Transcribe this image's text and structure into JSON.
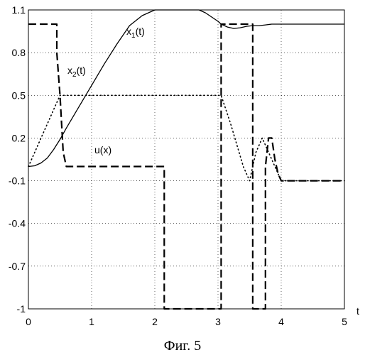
{
  "caption": "Фиг. 5",
  "chart_data": {
    "type": "line",
    "title": "",
    "xlabel": "t",
    "ylabel": "",
    "xlim": [
      0,
      5
    ],
    "ylim": [
      -1,
      1.1
    ],
    "xticks": [
      0,
      1,
      2,
      3,
      4,
      5
    ],
    "yticks": [
      1.1,
      0.8,
      0.5,
      0.2,
      -0.1,
      -0.4,
      -0.7,
      -1
    ],
    "grid": true,
    "legend": "inline-labels",
    "series": [
      {
        "name": "x1(t)",
        "label_main": "x",
        "label_sub": "1",
        "label_rest": "(t)",
        "style": "solid",
        "x": [
          0,
          0.1,
          0.2,
          0.3,
          0.4,
          0.5,
          0.6,
          0.8,
          1.0,
          1.2,
          1.4,
          1.6,
          1.8,
          2.0,
          2.2,
          2.4,
          2.55,
          2.7,
          2.8,
          2.9,
          3.0,
          3.05,
          3.15,
          3.25,
          3.35,
          3.45,
          3.55,
          3.65,
          3.75,
          3.85,
          4.0,
          4.5,
          5.0
        ],
        "y": [
          0,
          0.005,
          0.025,
          0.06,
          0.12,
          0.19,
          0.27,
          0.42,
          0.57,
          0.72,
          0.86,
          0.99,
          1.06,
          1.1,
          1.1,
          1.1,
          1.1,
          1.1,
          1.08,
          1.05,
          1.02,
          1.0,
          0.98,
          0.97,
          0.975,
          0.985,
          0.99,
          0.99,
          0.995,
          1.0,
          1.0,
          1.0,
          1.0
        ]
      },
      {
        "name": "x2(t)",
        "label_main": "x",
        "label_sub": "2",
        "label_rest": "(t)",
        "style": "dotted",
        "x": [
          0,
          0.1,
          0.2,
          0.3,
          0.4,
          0.5,
          0.6,
          1.0,
          1.5,
          2.0,
          2.2,
          2.4,
          2.6,
          2.8,
          3.0,
          3.05,
          3.2,
          3.4,
          3.5,
          3.6,
          3.7,
          3.75,
          3.8,
          3.85,
          3.9,
          4.0,
          4.2,
          5.0
        ],
        "y": [
          0,
          0.1,
          0.2,
          0.3,
          0.4,
          0.5,
          0.5,
          0.5,
          0.5,
          0.5,
          0.5,
          0.5,
          0.5,
          0.5,
          0.5,
          0.5,
          0.3,
          0.0,
          -0.1,
          0.1,
          0.2,
          0.15,
          0.1,
          0.05,
          0.0,
          -0.1,
          -0.1,
          -0.1
        ]
      },
      {
        "name": "u(x)",
        "label_main": "u(x)",
        "label_sub": "",
        "label_rest": "",
        "style": "dashed",
        "x": [
          0,
          0.45,
          0.45,
          0.5,
          0.55,
          0.6,
          2.15,
          2.15,
          3.05,
          3.05,
          3.55,
          3.55,
          3.75,
          3.75,
          3.8,
          3.85,
          3.9,
          3.95,
          4.0,
          4.1,
          4.3,
          4.6,
          5.0
        ],
        "y": [
          1.0,
          1.0,
          0.8,
          0.5,
          0.1,
          0.0,
          0.0,
          -1.0,
          -1.0,
          1.0,
          1.0,
          -1.0,
          -1.0,
          0.0,
          0.2,
          0.2,
          0.05,
          -0.05,
          -0.1,
          -0.1,
          -0.1,
          -0.1,
          -0.1
        ]
      }
    ]
  }
}
